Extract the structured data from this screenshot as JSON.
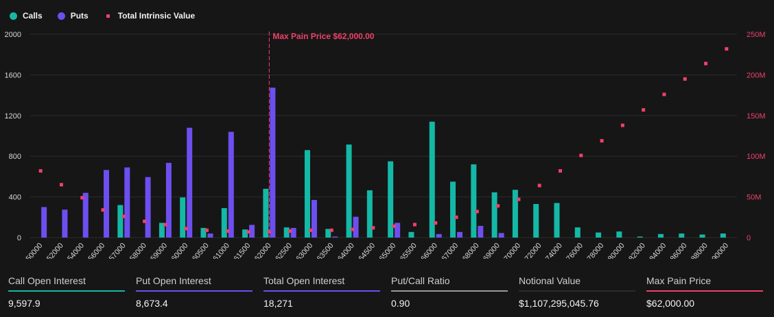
{
  "legend": {
    "calls": "Calls",
    "puts": "Puts",
    "intrinsic": "Total Intrinsic Value"
  },
  "colors": {
    "calls": "#14b8a6",
    "puts": "#6d4ff0",
    "intrinsic": "#f0406a",
    "neutral": "#9a9a9a",
    "notional": "#2b2b2b"
  },
  "chart_data": {
    "type": "bar",
    "title": "",
    "categories": [
      "50000",
      "52000",
      "54000",
      "56000",
      "57000",
      "58000",
      "59000",
      "60000",
      "60500",
      "61000",
      "61500",
      "62000",
      "62500",
      "63000",
      "63500",
      "64000",
      "64500",
      "65000",
      "65500",
      "66000",
      "67000",
      "68000",
      "69000",
      "70000",
      "72000",
      "74000",
      "76000",
      "78000",
      "80000",
      "82000",
      "84000",
      "86000",
      "88000",
      "90000"
    ],
    "series": [
      {
        "name": "Calls",
        "axis": "left",
        "values": [
          0,
          0,
          0,
          0,
          320,
          0,
          145,
          395,
          95,
          290,
          80,
          480,
          100,
          860,
          85,
          915,
          465,
          750,
          55,
          1140,
          550,
          720,
          445,
          470,
          330,
          340,
          100,
          50,
          60,
          10,
          35,
          40,
          30,
          40
        ]
      },
      {
        "name": "Puts",
        "axis": "left",
        "values": [
          300,
          275,
          440,
          665,
          690,
          595,
          735,
          1080,
          40,
          1040,
          125,
          1475,
          95,
          370,
          10,
          205,
          0,
          145,
          0,
          35,
          55,
          115,
          45,
          0,
          0,
          0,
          0,
          0,
          0,
          0,
          0,
          0,
          0,
          0
        ]
      },
      {
        "name": "Total Intrinsic Value",
        "axis": "right",
        "type": "scatter",
        "values": [
          82,
          65,
          49,
          34,
          26,
          20,
          16,
          11,
          9,
          8,
          7,
          7,
          8,
          9,
          9,
          10,
          12,
          14,
          16,
          18,
          25,
          32,
          39,
          47,
          64,
          82,
          101,
          119,
          138,
          157,
          176,
          195,
          214,
          232
        ]
      }
    ],
    "left_axis": {
      "ylim": [
        0,
        2000
      ],
      "ticks": [
        "0",
        "400",
        "800",
        "1200",
        "1600",
        "2000"
      ]
    },
    "right_axis": {
      "ylim": [
        0,
        250
      ],
      "ticks": [
        "0",
        "50M",
        "100M",
        "150M",
        "200M",
        "250M"
      ]
    },
    "annotation": {
      "category": "62000",
      "label": "Max Pain Price $62,000.00"
    }
  },
  "stats": [
    {
      "label": "Call Open Interest",
      "value": "9,597.9",
      "color": "#14b8a6"
    },
    {
      "label": "Put Open Interest",
      "value": "8,673.4",
      "color": "#6d4ff0"
    },
    {
      "label": "Total Open Interest",
      "value": "18,271",
      "color": "#6d4ff0"
    },
    {
      "label": "Put/Call Ratio",
      "value": "0.90",
      "color": "#9a9a9a"
    },
    {
      "label": "Notional Value",
      "value": "$1,107,295,045.76",
      "color": "#2b2b2b"
    },
    {
      "label": "Max Pain Price",
      "value": "$62,000.00",
      "color": "#f0406a"
    }
  ]
}
